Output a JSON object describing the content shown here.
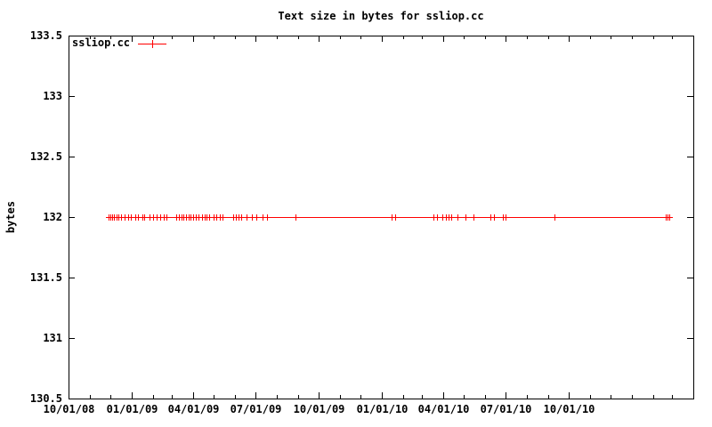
{
  "chart_data": {
    "type": "line",
    "title": "Text size in bytes for ssliop.cc",
    "ylabel": "bytes",
    "background_color": "#ffffff",
    "axis_color": "#000000",
    "grid": false,
    "legend": {
      "position": "top-left"
    },
    "x_range": [
      "2008-10-01",
      "2011-04-01"
    ],
    "y_range": [
      130.5,
      133.5
    ],
    "x_minor_tick_interval": "month",
    "x_major_ticks": [
      {
        "date": "2008-10-01",
        "label": "10/01/08"
      },
      {
        "date": "2009-01-01",
        "label": "01/01/09"
      },
      {
        "date": "2009-04-01",
        "label": "04/01/09"
      },
      {
        "date": "2009-07-01",
        "label": "07/01/09"
      },
      {
        "date": "2009-10-01",
        "label": "10/01/09"
      },
      {
        "date": "2010-01-01",
        "label": "01/01/10"
      },
      {
        "date": "2010-04-01",
        "label": "04/01/10"
      },
      {
        "date": "2010-07-01",
        "label": "07/01/10"
      },
      {
        "date": "2010-10-01",
        "label": "10/01/10"
      }
    ],
    "y_ticks": [
      {
        "value": 130.5,
        "label": "130.5"
      },
      {
        "value": 131.0,
        "label": "131"
      },
      {
        "value": 131.5,
        "label": "131.5"
      },
      {
        "value": 132.0,
        "label": "132"
      },
      {
        "value": 132.5,
        "label": "132.5"
      },
      {
        "value": 133.0,
        "label": "133"
      },
      {
        "value": 133.5,
        "label": "133.5"
      }
    ],
    "series": [
      {
        "name": "ssliop.cc",
        "color": "#ff0000",
        "marker": "plus",
        "y_constant": 132,
        "x_dates": [
          "2008-11-28",
          "2008-12-01",
          "2008-12-04",
          "2008-12-06",
          "2008-12-10",
          "2008-12-13",
          "2008-12-17",
          "2008-12-22",
          "2008-12-27",
          "2008-12-31",
          "2009-01-06",
          "2009-01-10",
          "2009-01-17",
          "2009-01-19",
          "2009-01-27",
          "2009-02-01",
          "2009-02-07",
          "2009-02-12",
          "2009-02-17",
          "2009-02-21",
          "2009-03-07",
          "2009-03-11",
          "2009-03-15",
          "2009-03-18",
          "2009-03-21",
          "2009-03-25",
          "2009-03-28",
          "2009-04-01",
          "2009-04-05",
          "2009-04-09",
          "2009-04-14",
          "2009-04-18",
          "2009-04-20",
          "2009-04-24",
          "2009-05-01",
          "2009-05-05",
          "2009-05-10",
          "2009-05-14",
          "2009-05-29",
          "2009-06-02",
          "2009-06-06",
          "2009-06-10",
          "2009-06-18",
          "2009-06-26",
          "2009-07-02",
          "2009-07-11",
          "2009-07-18",
          "2009-08-28",
          "2010-01-16",
          "2010-01-21",
          "2010-03-18",
          "2010-03-23",
          "2010-03-30",
          "2010-04-05",
          "2010-04-09",
          "2010-04-13",
          "2010-04-22",
          "2010-05-04",
          "2010-05-15",
          "2010-06-09",
          "2010-06-14",
          "2010-06-27",
          "2010-07-01",
          "2010-09-10",
          "2011-02-20",
          "2011-02-22",
          "2011-02-25"
        ]
      }
    ]
  }
}
